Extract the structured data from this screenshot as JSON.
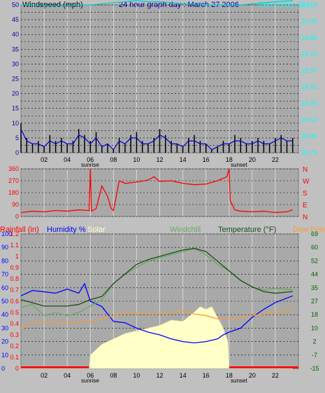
{
  "header": {
    "windspeed_label": "Windspeed (mph)",
    "title": "24 hour graph day : March 27 2006",
    "barometer_label": "Barometer (in.)"
  },
  "colors": {
    "background": "#c0c0c0",
    "plot_bg": "#a9a9a9",
    "wind_gust": "#000000",
    "wind_avg": "#0000cc",
    "barometer": "#00cccc",
    "wind_dir": "#ff0000",
    "rain": "#ff0000",
    "humidity": "#0000ff",
    "solar": "#ffffc8",
    "windchill": "#66aa66",
    "temperature": "#1a4d1a",
    "dewpoint": "#ff9933",
    "barometer_axis_text": "#00ffff",
    "wind_axis_text": "#0000aa",
    "temp_axis_text": "#006400"
  },
  "labels": {
    "sunrise": "sunrise",
    "sunset": "sunset",
    "legend_rain": "Rainfall (in)",
    "legend_humidity": "Humidity %",
    "legend_solar": "Solar",
    "legend_windchill": "Windchill",
    "legend_temperature": "Temperature (°F)",
    "legend_dewpoint": "Dew Point"
  },
  "chart_data": [
    {
      "type": "line",
      "x_ticks": [
        "02",
        "04",
        "06",
        "08",
        "10",
        "12",
        "14",
        "16",
        "18",
        "20",
        "22"
      ],
      "y_left_label": "Windspeed (mph)",
      "y_left_ticks": [
        "0",
        "2.5",
        "5",
        "7.5",
        "10",
        "12.5",
        "15",
        "17.5",
        "20",
        "22.5",
        "25",
        "27.5",
        "30",
        "32.5",
        "35",
        "37.5",
        "40",
        "42.5",
        "45",
        "47.5",
        "50"
      ],
      "y_left_lim": [
        0,
        50
      ],
      "y_right_label": "Barometer (in.)",
      "y_right_ticks": [
        "28.79",
        "28.95",
        "29.10",
        "29.26",
        "29.41",
        "29.57",
        "29.72",
        "29.88",
        "30.04",
        "30.19"
      ],
      "y_right_lim": [
        28.79,
        30.19
      ],
      "series": [
        {
          "name": "",
          "axis": "left",
          "kind": "wind_gust",
          "x": [
            0,
            0.5,
            1,
            1.5,
            2,
            2.5,
            3,
            3.5,
            4,
            4.5,
            5,
            5.5,
            6,
            6.5,
            7,
            7.5,
            8,
            8.5,
            9,
            9.5,
            10,
            10.5,
            11,
            11.5,
            12,
            12.5,
            13,
            13.5,
            14,
            14.5,
            15,
            15.5,
            16,
            16.5,
            17,
            17.5,
            18,
            18.5,
            19,
            19.5,
            20,
            20.5,
            21,
            21.5,
            22,
            22.5,
            23,
            23.5
          ],
          "y": [
            10,
            5,
            3,
            4,
            2,
            6,
            4,
            5,
            3,
            4,
            8,
            6,
            4,
            7,
            2,
            3,
            1,
            5,
            3,
            6,
            7,
            4,
            3,
            5,
            8,
            6,
            4,
            3,
            2,
            5,
            6,
            4,
            3,
            1,
            2,
            4,
            3,
            6,
            5,
            3,
            4,
            5,
            4,
            3,
            5,
            6,
            4,
            5
          ]
        },
        {
          "name": "",
          "axis": "left",
          "kind": "wind_avg",
          "x": [
            0,
            0.5,
            1,
            1.5,
            2,
            2.5,
            3,
            3.5,
            4,
            4.5,
            5,
            5.5,
            6,
            6.5,
            7,
            7.5,
            8,
            8.5,
            9,
            9.5,
            10,
            10.5,
            11,
            11.5,
            12,
            12.5,
            13,
            13.5,
            14,
            14.5,
            15,
            15.5,
            16,
            16.5,
            17,
            17.5,
            18,
            18.5,
            19,
            19.5,
            20,
            20.5,
            21,
            21.5,
            22,
            22.5,
            23,
            23.5
          ],
          "y": [
            8,
            4,
            3,
            3,
            2,
            4,
            3,
            4,
            3,
            3,
            6,
            5,
            3,
            5,
            2,
            3,
            1,
            4,
            3,
            5,
            5,
            3,
            3,
            4,
            6,
            5,
            3,
            3,
            2,
            4,
            4,
            3,
            3,
            1,
            2,
            3,
            3,
            4,
            4,
            3,
            3,
            4,
            3,
            3,
            4,
            5,
            4,
            4
          ]
        },
        {
          "name": "",
          "axis": "right",
          "kind": "barometer",
          "x": [
            0,
            1,
            2,
            3,
            4,
            5,
            6,
            7,
            8,
            9,
            10,
            11,
            12,
            13,
            14,
            15,
            16,
            17,
            18,
            19,
            20,
            21,
            22,
            23.5
          ],
          "y": [
            30.19,
            30.19,
            30.18,
            30.18,
            30.18,
            30.19,
            30.19,
            30.2,
            30.21,
            30.22,
            30.23,
            30.22,
            30.22,
            30.21,
            30.2,
            30.2,
            30.19,
            30.19,
            30.19,
            30.19,
            30.2,
            30.21,
            30.22,
            30.23
          ]
        }
      ]
    },
    {
      "type": "line",
      "x_ticks": [
        "02",
        "04",
        "06",
        "08",
        "10",
        "12",
        "14",
        "16",
        "18",
        "20",
        "22"
      ],
      "y_left_ticks": [
        "0",
        "90",
        "180",
        "270",
        "360"
      ],
      "y_left_lim": [
        0,
        360
      ],
      "y_right_ticks": [
        "N",
        "E",
        "S",
        "W",
        "N"
      ],
      "series": [
        {
          "name": "",
          "kind": "wind_dir",
          "x": [
            0,
            1,
            2,
            3,
            4,
            5,
            5.9,
            6,
            6.1,
            6.5,
            7,
            7.5,
            7.8,
            8,
            8.5,
            9,
            10,
            11,
            11.5,
            12,
            13,
            14,
            15,
            16,
            17,
            17.8,
            18,
            18.1,
            18.5,
            19,
            20,
            21,
            22,
            23,
            23.5
          ],
          "y": [
            30,
            40,
            35,
            45,
            40,
            50,
            45,
            360,
            40,
            60,
            230,
            150,
            60,
            45,
            270,
            250,
            260,
            275,
            300,
            265,
            270,
            250,
            240,
            245,
            270,
            300,
            360,
            120,
            50,
            40,
            35,
            40,
            30,
            35,
            50
          ]
        }
      ]
    },
    {
      "type": "line",
      "x_ticks": [
        "02",
        "04",
        "06",
        "08",
        "10",
        "12",
        "14",
        "16",
        "18",
        "20",
        "22"
      ],
      "y_left_humidity_ticks": [
        "0",
        "10",
        "20",
        "30",
        "40",
        "50",
        "60",
        "70",
        "80",
        "90",
        "100"
      ],
      "y_left_rain_ticks": [
        "0",
        "0.1",
        "0.2",
        "0.3",
        "0.4",
        "0.5",
        "0.6",
        "0.7",
        "0.8",
        "0.9",
        "1",
        "1.1",
        "1.2"
      ],
      "y_right_label": "Temperature (°F)",
      "y_right_ticks": [
        "-15",
        "-7",
        "2",
        "10",
        "18",
        "27",
        "35",
        "44",
        "52",
        "60",
        "69"
      ],
      "series": [
        {
          "name": "Humidity %",
          "kind": "humidity",
          "x": [
            0,
            1,
            2,
            3,
            4,
            5,
            5.5,
            6,
            7,
            8,
            9,
            10,
            11,
            12,
            13,
            14,
            15,
            16,
            17,
            17.5,
            18,
            19,
            20,
            21,
            22,
            23.5
          ],
          "y": [
            54,
            58,
            57,
            56,
            59,
            56,
            63,
            50,
            46,
            35,
            34,
            30,
            27,
            25,
            22,
            20,
            19,
            20,
            22,
            25,
            27,
            30,
            38,
            44,
            49,
            54
          ]
        },
        {
          "name": "Solar",
          "kind": "solar",
          "x": [
            0,
            5.9,
            6,
            7,
            8,
            9,
            10,
            11,
            12,
            13,
            14,
            15,
            15.5,
            16,
            16.5,
            17,
            17.5,
            17.9,
            18,
            23.5
          ],
          "y": [
            0,
            0,
            10,
            18,
            22,
            26,
            28,
            30,
            32,
            36,
            35,
            42,
            46,
            44,
            46,
            38,
            30,
            20,
            0,
            0
          ]
        },
        {
          "name": "Windchill",
          "kind": "windchill",
          "x": [
            0,
            1,
            2,
            3,
            4,
            5,
            6,
            7,
            8,
            9,
            10,
            11,
            12,
            13,
            14,
            15,
            16,
            17,
            18,
            19,
            20,
            21,
            22,
            23.5
          ],
          "y": [
            23,
            25,
            18,
            20,
            18,
            20,
            24,
            28,
            38,
            44,
            48,
            52,
            54,
            56,
            58,
            60,
            56,
            50,
            46,
            40,
            36,
            34,
            35,
            34
          ]
        },
        {
          "name": "Temperature (°F)",
          "kind": "temperature",
          "x": [
            0,
            1,
            2,
            3,
            4,
            5,
            6,
            7,
            8,
            9,
            10,
            11,
            12,
            13,
            14,
            15,
            16,
            17,
            18,
            19,
            20,
            21,
            22,
            23.5
          ],
          "y": [
            28,
            26,
            24,
            24,
            24,
            25,
            28,
            30,
            38,
            44,
            50,
            53,
            55,
            57,
            59,
            60,
            58,
            52,
            46,
            40,
            36,
            33,
            32,
            33
          ]
        },
        {
          "name": "Dew Point",
          "kind": "dewpoint",
          "x": [
            0,
            1,
            2,
            3,
            4,
            5,
            6,
            7,
            8,
            9,
            10,
            11,
            12,
            13,
            14,
            15,
            16,
            17,
            18,
            19,
            20,
            21,
            22,
            23.5
          ],
          "y": [
            10,
            14,
            14,
            14,
            13,
            14,
            14,
            16,
            18,
            20,
            20,
            19,
            19,
            20,
            21,
            19,
            18,
            16,
            16,
            17,
            18,
            19,
            20,
            22
          ]
        }
      ]
    }
  ]
}
